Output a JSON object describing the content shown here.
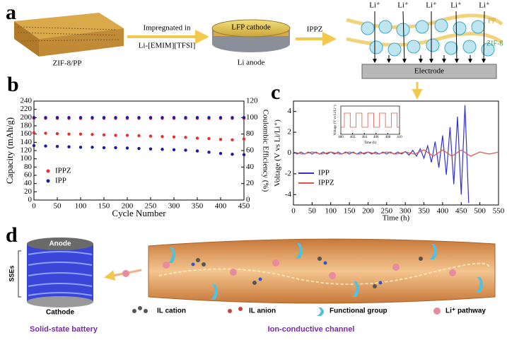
{
  "figure": {
    "panel_a": {
      "letter": "a",
      "membrane": "ZIF-8/PP",
      "step_1": "Impregnated in",
      "step_2": "Li-[EMIM][TFSI]",
      "cathode": "LFP cathode",
      "anode": "Li anode",
      "product": "IPPZ",
      "ions": [
        "Li⁺",
        "Li⁺",
        "Li⁺",
        "Li⁺",
        "Li⁺"
      ],
      "pp": "PP",
      "zif": "ZIF-8",
      "electrode": "Electrode"
    },
    "panel_b": {
      "letter": "b"
    },
    "panel_c": {
      "letter": "c"
    },
    "panel_d": {
      "letter": "d",
      "anode": "Anode",
      "sse": "SSEs",
      "cathode": "Cathode",
      "battery": "Solid-state battery",
      "channel": "Ion-conductive channel",
      "legend": [
        "IL cation",
        "IL anion",
        "Functional group",
        "Li⁺ pathway"
      ]
    }
  },
  "chart_data": [
    {
      "type": "scatter",
      "xlabel": "Cycle Number",
      "ylabel": "Capacity (mAh/g)",
      "y2label": "Coulombic Efficiency (%)",
      "xlim": [
        0,
        450
      ],
      "xticks": [
        0,
        50,
        100,
        150,
        200,
        250,
        300,
        350,
        400,
        450
      ],
      "ylim": [
        0,
        240
      ],
      "yticks": [
        0,
        20,
        40,
        60,
        80,
        100,
        120,
        140,
        160,
        180,
        200,
        220,
        240
      ],
      "y2lim": [
        0,
        120
      ],
      "y2ticks": [
        0,
        20,
        40,
        60,
        80,
        100,
        120
      ],
      "x": [
        0,
        25,
        50,
        75,
        100,
        125,
        150,
        175,
        200,
        225,
        250,
        275,
        300,
        325,
        350,
        375,
        400,
        425,
        450
      ],
      "series": [
        {
          "name": "IPPZ",
          "color": "#e8312b",
          "values": [
            163,
            162,
            161,
            160,
            160,
            159,
            158,
            157,
            157,
            156,
            155,
            154,
            153,
            152,
            150,
            149,
            147,
            146,
            148
          ]
        },
        {
          "name": "IPP",
          "color": "#1a1aa6",
          "values": [
            132,
            131,
            130,
            129,
            128,
            128,
            127,
            127,
            126,
            125,
            124,
            123,
            122,
            121,
            119,
            116,
            113,
            111,
            110
          ]
        },
        {
          "color": "#e8312b",
          "axis": "y2",
          "values": [
            99,
            99,
            99,
            99,
            99,
            99,
            99,
            99,
            99,
            99,
            99,
            99,
            99,
            99,
            99,
            99,
            99,
            99,
            99
          ]
        },
        {
          "color": "#1a1aa6",
          "axis": "y2",
          "values": [
            100,
            100,
            100,
            100,
            100,
            100,
            100,
            100,
            100,
            100,
            100,
            100,
            100,
            100,
            100,
            100,
            100,
            100,
            100
          ]
        }
      ]
    },
    {
      "type": "line",
      "xlabel": "Time (h)",
      "ylabel": "Voltage (V vs Li/Li⁺)",
      "xlim": [
        0,
        550
      ],
      "xticks": [
        0,
        50,
        100,
        150,
        200,
        250,
        300,
        350,
        400,
        450,
        500,
        550
      ],
      "ylim": [
        -5,
        5
      ],
      "yticks": [
        -4,
        -2,
        0,
        2,
        4
      ],
      "series": [
        {
          "name": "IPP",
          "color": "#3333cc",
          "x": [
            0,
            10,
            20,
            30,
            40,
            50,
            60,
            70,
            80,
            90,
            100,
            110,
            120,
            130,
            140,
            150,
            160,
            170,
            180,
            190,
            200,
            210,
            220,
            230,
            240,
            250,
            260,
            270,
            280,
            290,
            300,
            310,
            320,
            330,
            340,
            350,
            360,
            370,
            380,
            390,
            400,
            410,
            420,
            430,
            440,
            450,
            460,
            470
          ],
          "values": [
            0.1,
            -0.1,
            0.1,
            -0.1,
            0.1,
            -0.1,
            0.1,
            -0.1,
            0.1,
            -0.1,
            0.1,
            -0.1,
            0.1,
            -0.1,
            0.1,
            -0.1,
            0.1,
            -0.1,
            0.1,
            -0.1,
            0.1,
            -0.1,
            0.1,
            -0.1,
            0.1,
            -0.1,
            0.1,
            -0.1,
            0.1,
            -0.1,
            0.15,
            -0.2,
            0.25,
            -0.3,
            0.4,
            -0.5,
            0.7,
            -0.9,
            1.1,
            -1.4,
            1.7,
            -2.1,
            2.5,
            -3.0,
            3.5,
            -4.0,
            4.6,
            -4.8
          ]
        },
        {
          "name": "IPPZ",
          "color": "#e0554a",
          "x": [
            0,
            25,
            50,
            75,
            100,
            125,
            150,
            175,
            200,
            225,
            250,
            275,
            300,
            325,
            350,
            375,
            400,
            425,
            450,
            475,
            500,
            525,
            550
          ],
          "values": [
            0.1,
            -0.1,
            0.1,
            -0.1,
            0.1,
            -0.1,
            0.1,
            -0.1,
            0.1,
            -0.1,
            0.1,
            -0.1,
            0.1,
            -0.1,
            0.3,
            -0.3,
            0.3,
            -0.3,
            0.3,
            -0.3,
            0.1,
            -0.1,
            0.1
          ]
        }
      ]
    },
    {
      "type": "line",
      "xlabel": "Time (h)",
      "ylabel": "Voltage (V vs Li/Li⁺)",
      "xlim": [
        400,
        410
      ],
      "xticks": [
        400,
        402,
        404,
        406,
        408,
        410
      ],
      "ylim": [
        -0.1,
        0.1
      ],
      "series": [
        {
          "color": "#e0554a",
          "x": [
            400,
            400.6,
            400.6,
            401.6,
            401.6,
            402.6,
            402.6,
            403.6,
            403.6,
            404.6,
            404.6,
            405.6,
            405.6,
            406.6,
            406.6,
            407.6,
            407.6,
            408.6,
            408.6,
            409.6,
            409.6,
            410
          ],
          "values": [
            -0.05,
            -0.05,
            0.05,
            0.05,
            -0.05,
            -0.05,
            0.05,
            0.05,
            -0.05,
            -0.05,
            0.05,
            0.05,
            -0.05,
            -0.05,
            0.05,
            0.05,
            -0.05,
            -0.05,
            0.05,
            0.05,
            -0.05,
            -0.05
          ]
        }
      ]
    }
  ]
}
